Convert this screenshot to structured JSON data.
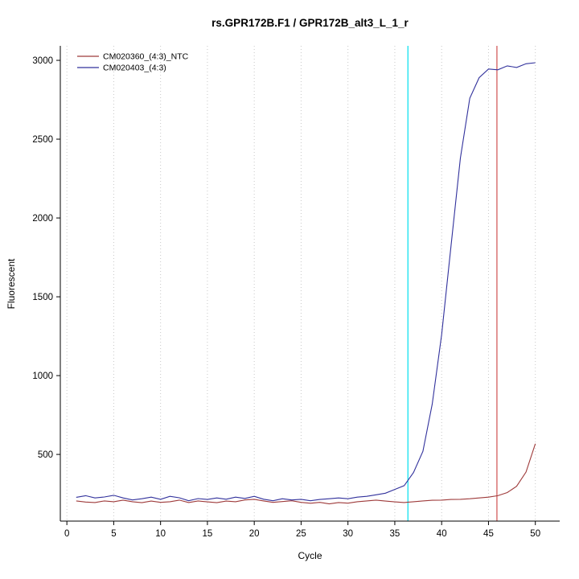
{
  "title": "rs.GPR172B.F1 / GPR172B_alt3_L_1_r",
  "chart_data": {
    "type": "line",
    "title": "rs.GPR172B.F1 / GPR172B_alt3_L_1_r",
    "xlabel": "Cycle",
    "ylabel": "Fluorescent",
    "xlim": [
      -0.7,
      52.6
    ],
    "ylim": [
      77,
      3092
    ],
    "x_ticks": [
      0,
      5,
      10,
      15,
      20,
      25,
      30,
      35,
      40,
      45,
      50
    ],
    "y_ticks": [
      500,
      1000,
      1500,
      2000,
      2500,
      3000
    ],
    "grid": "vertical-dotted",
    "grid_color": "#c8c8c8",
    "legend_position": "top-left",
    "x": [
      1,
      2,
      3,
      4,
      5,
      6,
      7,
      8,
      9,
      10,
      11,
      12,
      13,
      14,
      15,
      16,
      17,
      18,
      19,
      20,
      21,
      22,
      23,
      24,
      25,
      26,
      27,
      28,
      29,
      30,
      31,
      32,
      33,
      34,
      35,
      36,
      37,
      38,
      39,
      40,
      41,
      42,
      43,
      44,
      45,
      46,
      47,
      48,
      49,
      50
    ],
    "series": [
      {
        "name": "CM020360_(4:3)_NTC",
        "color": "#9e3a3a",
        "values": [
          205,
          198,
          195,
          205,
          200,
          210,
          200,
          194,
          204,
          196,
          200,
          210,
          195,
          205,
          199,
          194,
          204,
          200,
          211,
          215,
          205,
          196,
          201,
          206,
          196,
          190,
          196,
          186,
          195,
          191,
          200,
          205,
          210,
          204,
          199,
          195,
          200,
          205,
          209,
          210,
          214,
          215,
          219,
          224,
          229,
          238,
          258,
          298,
          388,
          568
        ]
      },
      {
        "name": "CM020403_(4:3)",
        "color": "#31319c",
        "values": [
          228,
          238,
          224,
          230,
          241,
          224,
          211,
          219,
          229,
          215,
          234,
          225,
          206,
          220,
          214,
          224,
          216,
          229,
          221,
          234,
          216,
          206,
          219,
          211,
          215,
          206,
          214,
          219,
          224,
          219,
          229,
          234,
          244,
          254,
          278,
          302,
          385,
          520,
          820,
          1260,
          1820,
          2380,
          2760,
          2890,
          2945,
          2940,
          2965,
          2955,
          2978,
          2985
        ]
      }
    ],
    "vlines": [
      {
        "x": 36.4,
        "color": "#00e0ee",
        "name": "threshold-line-cyan"
      },
      {
        "x": 45.9,
        "color": "#d05050",
        "name": "ct-marker-line-red"
      }
    ]
  }
}
